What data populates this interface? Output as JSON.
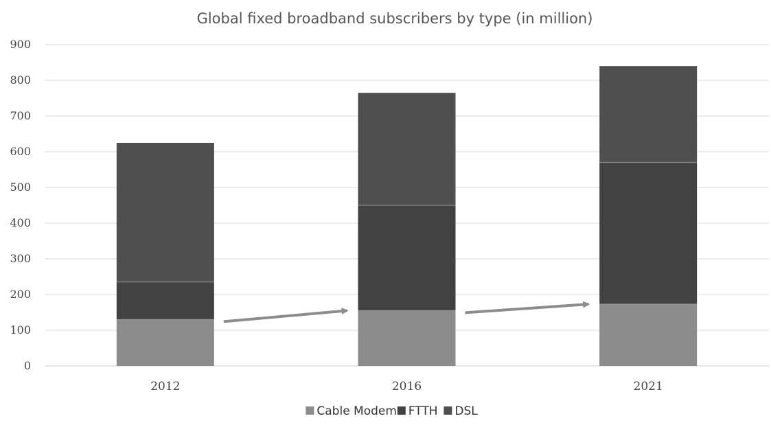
{
  "chart_data": {
    "type": "bar",
    "stacked": true,
    "title": "Global fixed broadband subscribers by type (in million)",
    "xlabel": "",
    "ylabel": "",
    "categories": [
      "2012",
      "2016",
      "2021"
    ],
    "series": [
      {
        "name": "Cable Modem",
        "values": [
          130,
          155,
          173
        ],
        "color": "#8c8c8c"
      },
      {
        "name": "FTTH",
        "values": [
          105,
          295,
          397
        ],
        "color": "#424242"
      },
      {
        "name": "DSL",
        "values": [
          390,
          315,
          270
        ],
        "color": "#4f4f4f"
      }
    ],
    "ylim": [
      0,
      900
    ],
    "yticks": [
      "0",
      "100",
      "200",
      "300",
      "400",
      "500",
      "600",
      "700",
      "800",
      "900"
    ],
    "grid": true,
    "legend_position": "bottom",
    "annotations": [
      {
        "type": "arrow",
        "from_category": "2012",
        "to_category": "2016",
        "color": "#8c8c8c"
      },
      {
        "type": "arrow",
        "from_category": "2016",
        "to_category": "2021",
        "color": "#8c8c8c"
      }
    ]
  }
}
